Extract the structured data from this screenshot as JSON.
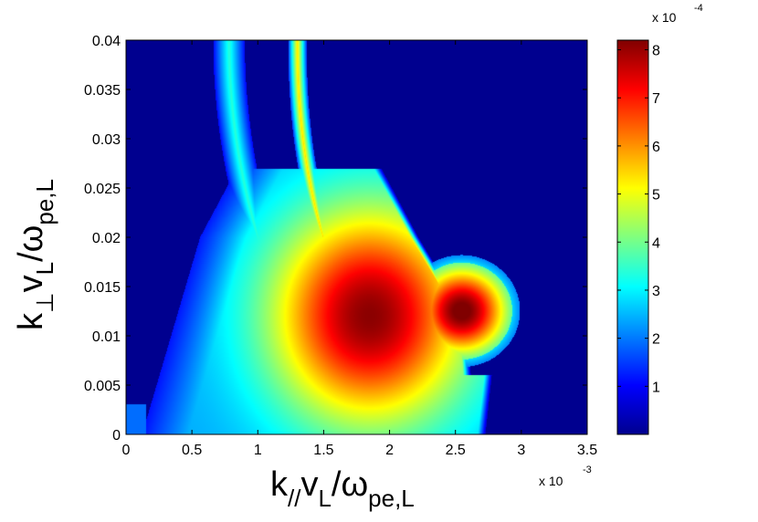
{
  "chart_data": {
    "type": "heatmap",
    "title": "",
    "xlabel": {
      "k": "k",
      "k_sub": "//",
      "v": "v",
      "v_sub": "L",
      "slash": "/",
      "omega": "ω",
      "omega_sub": "pe,L"
    },
    "ylabel": {
      "k": "k",
      "k_sub": "⊥",
      "v": "v",
      "v_sub": "L",
      "slash": "/",
      "omega": "ω",
      "omega_sub": "pe,L"
    },
    "x_multiplier": {
      "base": "x 10",
      "exp": "-3"
    },
    "colorbar_multiplier": {
      "base": "x 10",
      "exp": "-4"
    },
    "xlim": [
      0,
      3.5
    ],
    "ylim": [
      0,
      0.04
    ],
    "clim": [
      0,
      8.2
    ],
    "x_ticks": [
      "0",
      "0.5",
      "1",
      "1.5",
      "2",
      "2.5",
      "3",
      "3.5"
    ],
    "y_ticks": [
      "0",
      "0.005",
      "0.01",
      "0.015",
      "0.02",
      "0.025",
      "0.03",
      "0.035",
      "0.04"
    ],
    "colorbar_ticks": [
      "1",
      "2",
      "3",
      "4",
      "5",
      "6",
      "7",
      "8"
    ],
    "colormap": "jet",
    "features": [
      {
        "name": "main-lobe",
        "peak_x": 1.85,
        "peak_y": 0.012,
        "peak_value": 8.1
      },
      {
        "name": "secondary-lobe",
        "peak_x": 2.65,
        "peak_y": 0.0115,
        "peak_value": 7.0
      },
      {
        "name": "upper-branch-left",
        "x_at_top": 0.78,
        "value": 2.5
      },
      {
        "name": "upper-branch-right",
        "x_at_top": 1.3,
        "value": 4.0
      }
    ]
  }
}
